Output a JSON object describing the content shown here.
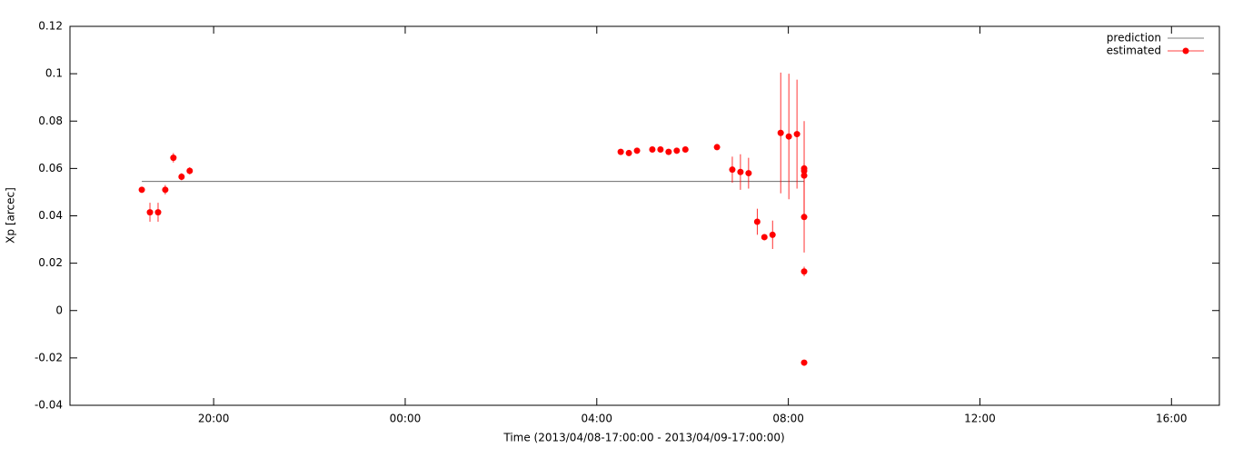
{
  "chart_data": {
    "type": "errorbar",
    "x_label": "Time (2013/04/08-17:00:00 - 2013/04/09-17:00:00)",
    "y_label": "Xp [arcec]",
    "xlim": [
      17,
      41
    ],
    "xticks": [
      {
        "value": 20,
        "label": "20:00"
      },
      {
        "value": 24,
        "label": "00:00"
      },
      {
        "value": 28,
        "label": "04:00"
      },
      {
        "value": 32,
        "label": "08:00"
      },
      {
        "value": 36,
        "label": "12:00"
      },
      {
        "value": 40,
        "label": "16:00"
      }
    ],
    "ylim": [
      -0.04,
      0.12
    ],
    "yticks": [
      -0.04,
      -0.02,
      0,
      0.02,
      0.04,
      0.06,
      0.08,
      0.1,
      0.12
    ],
    "legend": "top-right",
    "series": [
      {
        "name": "prediction",
        "color": "#555555",
        "x": [
          18.5,
          32.33
        ],
        "values": [
          0.0545,
          0.0545
        ]
      },
      {
        "name": "estimated",
        "color": "#ff0000",
        "x": [
          18.5,
          18.67,
          18.84,
          18.99,
          19.16,
          19.33,
          19.5,
          28.5,
          28.67,
          28.84,
          29.16,
          29.33,
          29.5,
          29.67,
          29.85,
          30.51,
          30.83,
          31.0,
          31.17,
          31.35,
          31.5,
          31.67,
          31.84,
          32.01,
          32.18,
          32.33,
          32.33,
          32.33,
          32.33,
          32.33,
          32.33
        ],
        "values": [
          0.051,
          0.0415,
          0.0415,
          0.051,
          0.0645,
          0.0565,
          0.059,
          0.067,
          0.0665,
          0.0675,
          0.068,
          0.068,
          0.067,
          0.0675,
          0.068,
          0.069,
          0.0595,
          0.0585,
          0.058,
          0.0375,
          0.031,
          0.032,
          0.075,
          0.0735,
          0.0745,
          0.06,
          0.059,
          0.057,
          0.0395,
          0.0165,
          -0.022
        ],
        "errors": [
          0.001,
          0.004,
          0.004,
          0.002,
          0.002,
          0.0015,
          0.0015,
          0.001,
          0.001,
          0.001,
          0.001,
          0.001,
          0.001,
          0.001,
          0.001,
          0.001,
          0.0055,
          0.0075,
          0.0065,
          0.0055,
          0.001,
          0.006,
          0.0255,
          0.0265,
          0.023,
          0.02,
          0.003,
          0.004,
          0.015,
          0.002,
          0.0005
        ]
      }
    ]
  }
}
